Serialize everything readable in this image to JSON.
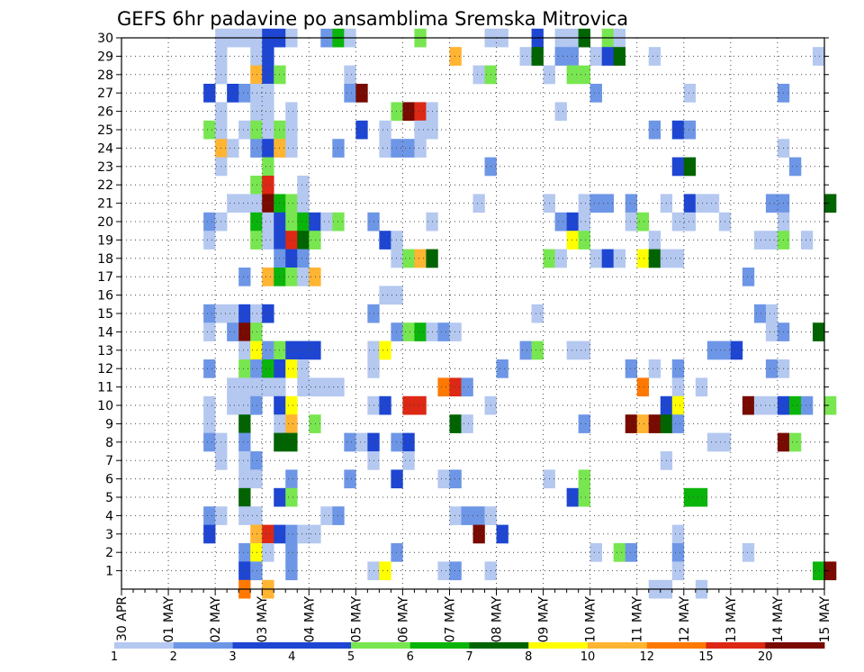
{
  "chart_data": {
    "type": "heatmap",
    "title": "GEFS 6hr padavine po ansamblima Sremska Mitrovica",
    "xlabel": "",
    "ylabel": "",
    "x_ticks": [
      "30 APR",
      "01 MAY",
      "02 MAY",
      "03 MAY",
      "04 MAY",
      "05 MAY",
      "06 MAY",
      "07 MAY",
      "08 MAY",
      "09 MAY",
      "10 MAY",
      "11 MAY",
      "12 MAY",
      "13 MAY",
      "14 MAY",
      "15 MAY"
    ],
    "x_unit": "6h_step_from_30_APR_00",
    "y_ticks": [
      1,
      2,
      3,
      4,
      5,
      6,
      7,
      8,
      9,
      10,
      11,
      12,
      13,
      14,
      15,
      16,
      17,
      18,
      19,
      20,
      21,
      22,
      23,
      24,
      25,
      26,
      27,
      28,
      29,
      30
    ],
    "ylim": [
      0,
      30
    ],
    "xlim": [
      0,
      60
    ],
    "grid": true,
    "legend": {
      "placement": "bottom",
      "labels": [
        "1",
        "2",
        "3",
        "4",
        "5",
        "6",
        "7",
        "8",
        "10",
        "12",
        "15",
        "20"
      ],
      "colors": [
        "#b4c8f0",
        "#6e96e6",
        "#1e46d2",
        "#1e46d2",
        "#78e650",
        "#0ab40a",
        "#006400",
        "#ffff00",
        "#ffb432",
        "#ff7800",
        "#dc2814",
        "#780a00"
      ]
    },
    "cells": [
      [
        8,
        30,
        1
      ],
      [
        9,
        30,
        1
      ],
      [
        10,
        30,
        1
      ],
      [
        11,
        30,
        1
      ],
      [
        12,
        30,
        4
      ],
      [
        13,
        30,
        3
      ],
      [
        14,
        30,
        1
      ],
      [
        17,
        30,
        2
      ],
      [
        18,
        30,
        6
      ],
      [
        19,
        30,
        1
      ],
      [
        25,
        30,
        5
      ],
      [
        31,
        30,
        1
      ],
      [
        32,
        30,
        1
      ],
      [
        35,
        30,
        3
      ],
      [
        37,
        30,
        1
      ],
      [
        38,
        30,
        1
      ],
      [
        39,
        30,
        7
      ],
      [
        41,
        30,
        5
      ],
      [
        42,
        30,
        1
      ],
      [
        8,
        29,
        1
      ],
      [
        11,
        29,
        1
      ],
      [
        12,
        29,
        4
      ],
      [
        28,
        29,
        10
      ],
      [
        34,
        29,
        1
      ],
      [
        35,
        29,
        7
      ],
      [
        37,
        29,
        2
      ],
      [
        38,
        29,
        2
      ],
      [
        40,
        29,
        1
      ],
      [
        41,
        29,
        3
      ],
      [
        42,
        29,
        7
      ],
      [
        45,
        29,
        1
      ],
      [
        59,
        29,
        1
      ],
      [
        8,
        28,
        1
      ],
      [
        11,
        28,
        10
      ],
      [
        12,
        28,
        4
      ],
      [
        13,
        28,
        5
      ],
      [
        19,
        28,
        1
      ],
      [
        30,
        28,
        1
      ],
      [
        31,
        28,
        5
      ],
      [
        36,
        28,
        1
      ],
      [
        38,
        28,
        5
      ],
      [
        39,
        28,
        5
      ],
      [
        7,
        27,
        3
      ],
      [
        9,
        27,
        3
      ],
      [
        10,
        27,
        2
      ],
      [
        11,
        27,
        1
      ],
      [
        12,
        27,
        1
      ],
      [
        19,
        27,
        2
      ],
      [
        20,
        27,
        20
      ],
      [
        40,
        27,
        2
      ],
      [
        48,
        27,
        1
      ],
      [
        56,
        27,
        2
      ],
      [
        8,
        26,
        1
      ],
      [
        11,
        26,
        1
      ],
      [
        12,
        26,
        1
      ],
      [
        14,
        26,
        1
      ],
      [
        23,
        26,
        5
      ],
      [
        24,
        26,
        20
      ],
      [
        25,
        26,
        15
      ],
      [
        26,
        26,
        1
      ],
      [
        37,
        26,
        1
      ],
      [
        7,
        25,
        5
      ],
      [
        8,
        25,
        1
      ],
      [
        10,
        25,
        1
      ],
      [
        11,
        25,
        5
      ],
      [
        12,
        25,
        1
      ],
      [
        13,
        25,
        5
      ],
      [
        14,
        25,
        1
      ],
      [
        20,
        25,
        4
      ],
      [
        22,
        25,
        1
      ],
      [
        25,
        25,
        1
      ],
      [
        26,
        25,
        1
      ],
      [
        45,
        25,
        2
      ],
      [
        47,
        25,
        3
      ],
      [
        48,
        25,
        2
      ],
      [
        8,
        24,
        10
      ],
      [
        9,
        24,
        1
      ],
      [
        11,
        24,
        2
      ],
      [
        12,
        24,
        3
      ],
      [
        13,
        24,
        10
      ],
      [
        14,
        24,
        1
      ],
      [
        18,
        24,
        2
      ],
      [
        22,
        24,
        1
      ],
      [
        23,
        24,
        2
      ],
      [
        24,
        24,
        2
      ],
      [
        25,
        24,
        1
      ],
      [
        56,
        24,
        1
      ],
      [
        8,
        23,
        1
      ],
      [
        12,
        23,
        5
      ],
      [
        31,
        23,
        2
      ],
      [
        47,
        23,
        3
      ],
      [
        48,
        23,
        7
      ],
      [
        57,
        23,
        2
      ],
      [
        11,
        22,
        5
      ],
      [
        12,
        22,
        15
      ],
      [
        15,
        22,
        1
      ],
      [
        9,
        21,
        1
      ],
      [
        10,
        21,
        1
      ],
      [
        11,
        21,
        1
      ],
      [
        12,
        21,
        20
      ],
      [
        13,
        21,
        6
      ],
      [
        14,
        21,
        5
      ],
      [
        15,
        21,
        1
      ],
      [
        30,
        21,
        1
      ],
      [
        36,
        21,
        1
      ],
      [
        39,
        21,
        1
      ],
      [
        40,
        21,
        2
      ],
      [
        41,
        21,
        2
      ],
      [
        43,
        21,
        2
      ],
      [
        46,
        21,
        1
      ],
      [
        48,
        21,
        3
      ],
      [
        49,
        21,
        1
      ],
      [
        50,
        21,
        1
      ],
      [
        55,
        21,
        2
      ],
      [
        56,
        21,
        2
      ],
      [
        60,
        21,
        7
      ],
      [
        7,
        20,
        2
      ],
      [
        8,
        20,
        1
      ],
      [
        11,
        20,
        6
      ],
      [
        12,
        20,
        1
      ],
      [
        13,
        20,
        4
      ],
      [
        14,
        20,
        5
      ],
      [
        15,
        20,
        6
      ],
      [
        16,
        20,
        3
      ],
      [
        17,
        20,
        1
      ],
      [
        18,
        20,
        5
      ],
      [
        21,
        20,
        2
      ],
      [
        26,
        20,
        1
      ],
      [
        37,
        20,
        2
      ],
      [
        38,
        20,
        3
      ],
      [
        39,
        20,
        1
      ],
      [
        43,
        20,
        1
      ],
      [
        44,
        20,
        5
      ],
      [
        47,
        20,
        1
      ],
      [
        48,
        20,
        1
      ],
      [
        51,
        20,
        1
      ],
      [
        56,
        20,
        1
      ],
      [
        7,
        19,
        1
      ],
      [
        11,
        19,
        5
      ],
      [
        12,
        19,
        1
      ],
      [
        13,
        19,
        3
      ],
      [
        14,
        19,
        15
      ],
      [
        15,
        19,
        7
      ],
      [
        16,
        19,
        5
      ],
      [
        22,
        19,
        3
      ],
      [
        23,
        19,
        1
      ],
      [
        38,
        19,
        8
      ],
      [
        39,
        19,
        5
      ],
      [
        45,
        19,
        1
      ],
      [
        54,
        19,
        1
      ],
      [
        55,
        19,
        1
      ],
      [
        56,
        19,
        5
      ],
      [
        58,
        19,
        1
      ],
      [
        13,
        18,
        2
      ],
      [
        14,
        18,
        3
      ],
      [
        15,
        18,
        2
      ],
      [
        23,
        18,
        1
      ],
      [
        24,
        18,
        5
      ],
      [
        25,
        18,
        10
      ],
      [
        26,
        18,
        7
      ],
      [
        36,
        18,
        5
      ],
      [
        37,
        18,
        1
      ],
      [
        40,
        18,
        1
      ],
      [
        41,
        18,
        3
      ],
      [
        42,
        18,
        1
      ],
      [
        44,
        18,
        8
      ],
      [
        45,
        18,
        7
      ],
      [
        46,
        18,
        1
      ],
      [
        47,
        18,
        1
      ],
      [
        12,
        17,
        10
      ],
      [
        13,
        17,
        6
      ],
      [
        14,
        17,
        5
      ],
      [
        15,
        17,
        1
      ],
      [
        16,
        17,
        10
      ],
      [
        53,
        17,
        2
      ],
      [
        10,
        17,
        2
      ],
      [
        22,
        16,
        1
      ],
      [
        23,
        16,
        1
      ],
      [
        7,
        15,
        2
      ],
      [
        8,
        15,
        1
      ],
      [
        9,
        15,
        1
      ],
      [
        10,
        15,
        3
      ],
      [
        11,
        15,
        1
      ],
      [
        12,
        15,
        3
      ],
      [
        21,
        15,
        2
      ],
      [
        35,
        15,
        1
      ],
      [
        54,
        15,
        2
      ],
      [
        55,
        15,
        1
      ],
      [
        7,
        14,
        1
      ],
      [
        9,
        14,
        2
      ],
      [
        10,
        14,
        20
      ],
      [
        11,
        14,
        5
      ],
      [
        23,
        14,
        2
      ],
      [
        24,
        14,
        5
      ],
      [
        25,
        14,
        6
      ],
      [
        26,
        14,
        1
      ],
      [
        27,
        14,
        2
      ],
      [
        28,
        14,
        1
      ],
      [
        55,
        14,
        1
      ],
      [
        56,
        14,
        2
      ],
      [
        59,
        14,
        7
      ],
      [
        10,
        13,
        1
      ],
      [
        11,
        13,
        8
      ],
      [
        12,
        13,
        2
      ],
      [
        13,
        13,
        5
      ],
      [
        14,
        13,
        3
      ],
      [
        15,
        13,
        3
      ],
      [
        16,
        13,
        3
      ],
      [
        21,
        13,
        1
      ],
      [
        22,
        13,
        8
      ],
      [
        34,
        13,
        2
      ],
      [
        35,
        13,
        5
      ],
      [
        38,
        13,
        1
      ],
      [
        39,
        13,
        1
      ],
      [
        50,
        13,
        2
      ],
      [
        51,
        13,
        2
      ],
      [
        52,
        13,
        3
      ],
      [
        7,
        12,
        2
      ],
      [
        10,
        12,
        5
      ],
      [
        11,
        12,
        2
      ],
      [
        12,
        12,
        6
      ],
      [
        13,
        12,
        4
      ],
      [
        14,
        12,
        8
      ],
      [
        15,
        12,
        1
      ],
      [
        21,
        12,
        1
      ],
      [
        32,
        12,
        2
      ],
      [
        43,
        12,
        2
      ],
      [
        45,
        12,
        1
      ],
      [
        47,
        12,
        2
      ],
      [
        55,
        12,
        2
      ],
      [
        56,
        12,
        1
      ],
      [
        9,
        11,
        1
      ],
      [
        10,
        11,
        1
      ],
      [
        11,
        11,
        1
      ],
      [
        12,
        11,
        1
      ],
      [
        13,
        11,
        1
      ],
      [
        15,
        11,
        1
      ],
      [
        16,
        11,
        1
      ],
      [
        17,
        11,
        1
      ],
      [
        18,
        11,
        1
      ],
      [
        27,
        11,
        12
      ],
      [
        28,
        11,
        15
      ],
      [
        29,
        11,
        2
      ],
      [
        44,
        11,
        12
      ],
      [
        47,
        11,
        1
      ],
      [
        49,
        11,
        1
      ],
      [
        7,
        10,
        1
      ],
      [
        9,
        10,
        1
      ],
      [
        10,
        10,
        1
      ],
      [
        11,
        10,
        2
      ],
      [
        13,
        10,
        3
      ],
      [
        14,
        10,
        8
      ],
      [
        21,
        10,
        1
      ],
      [
        22,
        10,
        3
      ],
      [
        24,
        10,
        15
      ],
      [
        25,
        10,
        15
      ],
      [
        31,
        10,
        1
      ],
      [
        46,
        10,
        3
      ],
      [
        47,
        10,
        8
      ],
      [
        53,
        10,
        20
      ],
      [
        54,
        10,
        1
      ],
      [
        55,
        10,
        1
      ],
      [
        56,
        10,
        3
      ],
      [
        57,
        10,
        6
      ],
      [
        58,
        10,
        2
      ],
      [
        60,
        10,
        5
      ],
      [
        7,
        9,
        1
      ],
      [
        10,
        9,
        7
      ],
      [
        13,
        9,
        1
      ],
      [
        14,
        9,
        10
      ],
      [
        16,
        9,
        5
      ],
      [
        28,
        9,
        7
      ],
      [
        29,
        9,
        1
      ],
      [
        39,
        9,
        2
      ],
      [
        43,
        9,
        20
      ],
      [
        44,
        9,
        10
      ],
      [
        45,
        9,
        20
      ],
      [
        46,
        9,
        7
      ],
      [
        47,
        9,
        2
      ],
      [
        7,
        8,
        2
      ],
      [
        8,
        8,
        1
      ],
      [
        10,
        8,
        2
      ],
      [
        13,
        8,
        7
      ],
      [
        14,
        8,
        7
      ],
      [
        19,
        8,
        2
      ],
      [
        20,
        8,
        1
      ],
      [
        21,
        8,
        3
      ],
      [
        23,
        8,
        2
      ],
      [
        24,
        8,
        3
      ],
      [
        50,
        8,
        1
      ],
      [
        51,
        8,
        1
      ],
      [
        56,
        8,
        20
      ],
      [
        57,
        8,
        5
      ],
      [
        8,
        7,
        1
      ],
      [
        10,
        7,
        1
      ],
      [
        11,
        7,
        2
      ],
      [
        21,
        7,
        1
      ],
      [
        24,
        7,
        1
      ],
      [
        46,
        7,
        1
      ],
      [
        10,
        6,
        1
      ],
      [
        11,
        6,
        1
      ],
      [
        14,
        6,
        2
      ],
      [
        19,
        6,
        2
      ],
      [
        23,
        6,
        3
      ],
      [
        27,
        6,
        1
      ],
      [
        28,
        6,
        2
      ],
      [
        36,
        6,
        1
      ],
      [
        39,
        6,
        5
      ],
      [
        10,
        5,
        7
      ],
      [
        13,
        5,
        3
      ],
      [
        14,
        5,
        5
      ],
      [
        38,
        5,
        3
      ],
      [
        39,
        5,
        5
      ],
      [
        48,
        5,
        6
      ],
      [
        49,
        5,
        6
      ],
      [
        7,
        4,
        2
      ],
      [
        8,
        4,
        1
      ],
      [
        10,
        4,
        1
      ],
      [
        11,
        4,
        1
      ],
      [
        17,
        4,
        1
      ],
      [
        18,
        4,
        2
      ],
      [
        28,
        4,
        1
      ],
      [
        29,
        4,
        2
      ],
      [
        30,
        4,
        2
      ],
      [
        31,
        4,
        1
      ],
      [
        7,
        3,
        3
      ],
      [
        11,
        3,
        10
      ],
      [
        12,
        3,
        15
      ],
      [
        13,
        3,
        3
      ],
      [
        14,
        3,
        2
      ],
      [
        15,
        3,
        1
      ],
      [
        16,
        3,
        1
      ],
      [
        30,
        3,
        20
      ],
      [
        32,
        3,
        3
      ],
      [
        47,
        3,
        1
      ],
      [
        10,
        2,
        2
      ],
      [
        11,
        2,
        8
      ],
      [
        12,
        2,
        1
      ],
      [
        14,
        2,
        2
      ],
      [
        23,
        2,
        2
      ],
      [
        40,
        2,
        1
      ],
      [
        42,
        2,
        5
      ],
      [
        43,
        2,
        2
      ],
      [
        47,
        2,
        2
      ],
      [
        53,
        2,
        1
      ],
      [
        10,
        1,
        3
      ],
      [
        11,
        1,
        2
      ],
      [
        14,
        1,
        2
      ],
      [
        21,
        1,
        1
      ],
      [
        22,
        1,
        8
      ],
      [
        27,
        1,
        1
      ],
      [
        28,
        1,
        2
      ],
      [
        31,
        1,
        1
      ],
      [
        47,
        1,
        1
      ],
      [
        59,
        1,
        6
      ],
      [
        60,
        1,
        20
      ],
      [
        10,
        0,
        12
      ],
      [
        12,
        0,
        10
      ],
      [
        45,
        0,
        1
      ],
      [
        46,
        0,
        1
      ],
      [
        49,
        0,
        1
      ]
    ]
  }
}
